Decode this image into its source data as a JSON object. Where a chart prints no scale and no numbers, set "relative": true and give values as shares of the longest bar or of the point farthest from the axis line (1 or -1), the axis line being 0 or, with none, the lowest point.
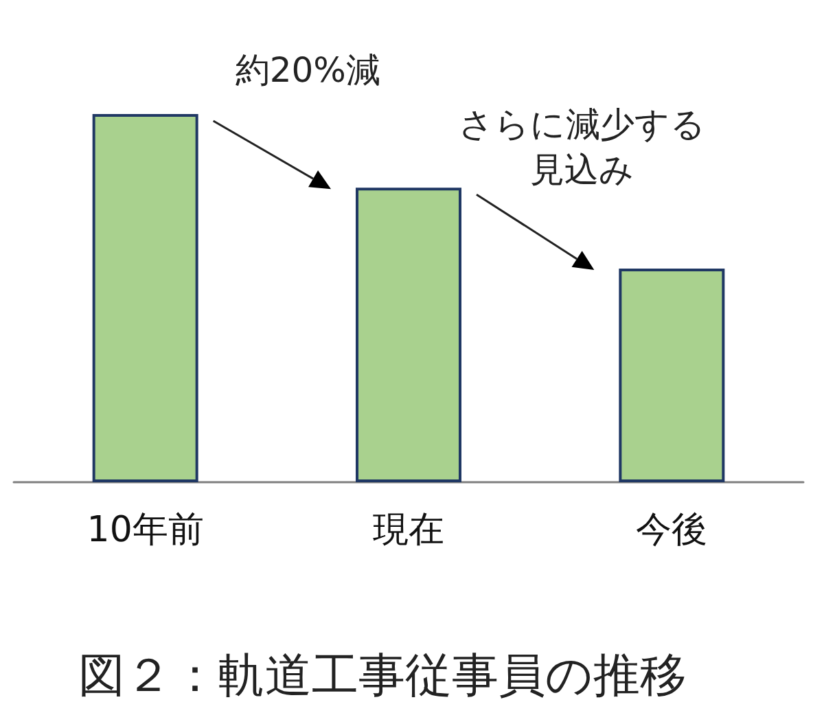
{
  "chart_data": {
    "type": "bar",
    "relative": true,
    "title": "図２：軌道工事従事員の推移",
    "categories": [
      "10年前",
      "現在",
      "今後"
    ],
    "values": [
      1,
      0.8,
      0.58
    ],
    "color": "#a9d18e",
    "annotations": [
      "約20%減",
      "さらに減少する見込み"
    ]
  }
}
